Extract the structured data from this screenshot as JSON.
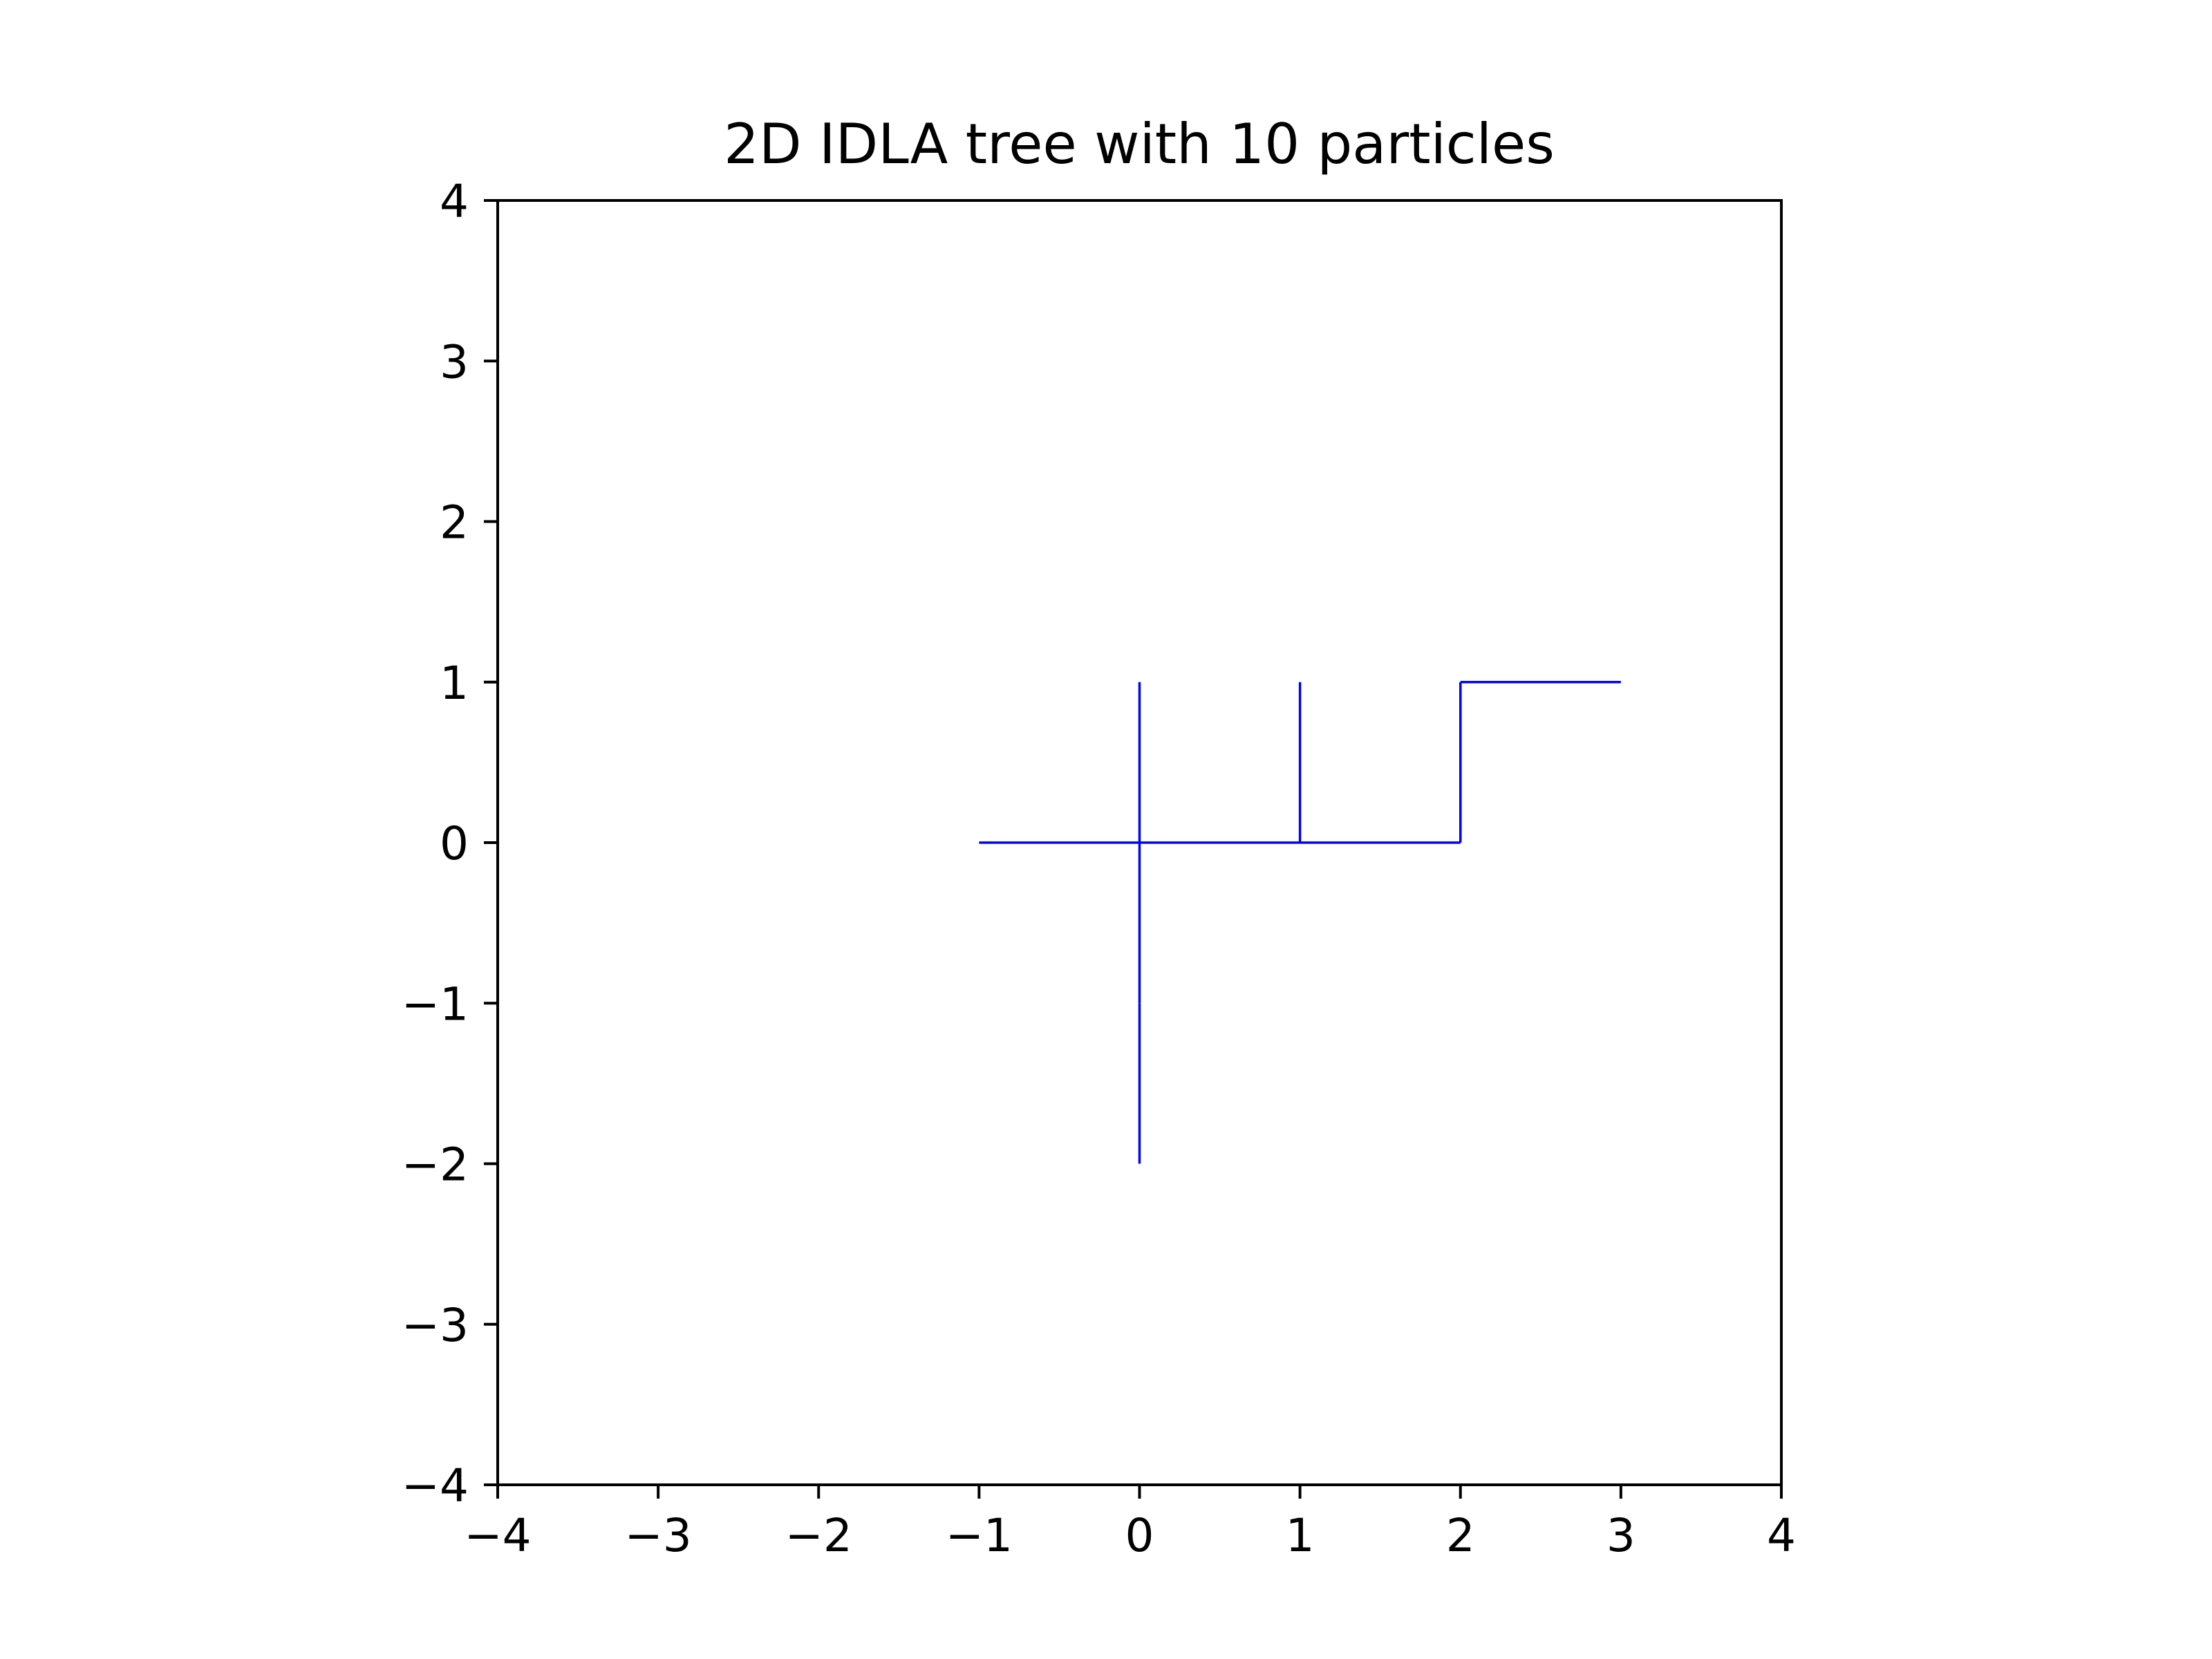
{
  "chart_data": {
    "type": "line",
    "title": "2D IDLA tree with 10 particles",
    "xlabel": "",
    "ylabel": "",
    "xlim": [
      -4,
      4
    ],
    "ylim": [
      -4,
      4
    ],
    "grid": false,
    "legend": "none",
    "line_color": "#0000ff",
    "x_ticks": [
      -4,
      -3,
      -2,
      -1,
      0,
      1,
      2,
      3,
      4
    ],
    "x_tick_labels": [
      "−4",
      "−3",
      "−2",
      "−1",
      "0",
      "1",
      "2",
      "3",
      "4"
    ],
    "y_ticks": [
      -4,
      -3,
      -2,
      -1,
      0,
      1,
      2,
      3,
      4
    ],
    "y_tick_labels": [
      "−4",
      "−3",
      "−2",
      "−1",
      "0",
      "1",
      "2",
      "3",
      "4"
    ],
    "edges": [
      [
        [
          0,
          0
        ],
        [
          -1,
          0
        ]
      ],
      [
        [
          0,
          0
        ],
        [
          0,
          1
        ]
      ],
      [
        [
          0,
          0
        ],
        [
          0,
          -1
        ]
      ],
      [
        [
          0,
          -1
        ],
        [
          0,
          -2
        ]
      ],
      [
        [
          0,
          0
        ],
        [
          1,
          0
        ]
      ],
      [
        [
          1,
          0
        ],
        [
          1,
          1
        ]
      ],
      [
        [
          1,
          0
        ],
        [
          2,
          0
        ]
      ],
      [
        [
          2,
          0
        ],
        [
          2,
          1
        ]
      ],
      [
        [
          2,
          1
        ],
        [
          3,
          1
        ]
      ]
    ]
  }
}
